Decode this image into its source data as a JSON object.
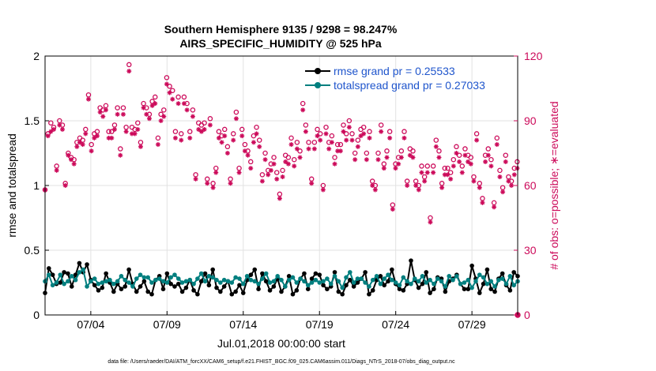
{
  "chart_data": {
    "type": "line",
    "title": "Southern Hemisphere 9135 / 9298 = 98.247%",
    "subtitle": "AIRS_SPECIFIC_HUMIDITY @ 525 hPa",
    "xlabel": "Jul.01,2018 00:00:00 start",
    "ylabel": "rmse and totalspread",
    "ylabel_right": "# of obs: o=possible; ∗=evaluated",
    "footer": "data file: /Users/raeder/DAI/ATM_forcXX/CAM6_setup/f.e21.FHIST_BGC.f09_025.CAM6assim.011/Diags_NTrS_2018-07/obs_diag_output.nc",
    "xlim": [
      1.0,
      32.0
    ],
    "ylim": [
      0,
      2
    ],
    "ylim_right": [
      0,
      120
    ],
    "x_ticks": [
      4,
      9,
      14,
      19,
      24,
      29
    ],
    "x_tick_labels": [
      "07/04",
      "07/09",
      "07/14",
      "07/19",
      "07/24",
      "07/29"
    ],
    "y_ticks": [
      0,
      0.5,
      1,
      1.5,
      2
    ],
    "y_tick_labels": [
      "0",
      "0.5",
      "1",
      "1.5",
      "2"
    ],
    "y_ticks_right": [
      0,
      30,
      60,
      90,
      120
    ],
    "y_tick_labels_right": [
      "0",
      "30",
      "60",
      "90",
      "120"
    ],
    "legend": [
      {
        "name": "rmse grand pr = 0.25533",
        "color": "#000000"
      },
      {
        "name": "totalspread grand pr = 0.27033",
        "color": "#007f7f"
      }
    ],
    "colors": {
      "rmse": "#000000",
      "spread": "#007f7f",
      "obs": "#cc0a5a",
      "legend_text": "#1f55cc"
    },
    "step": 0.25,
    "series": [
      {
        "name": "rmse",
        "values": [
          0.17,
          0.36,
          0.31,
          0.24,
          0.25,
          0.33,
          0.32,
          0.22,
          0.31,
          0.4,
          0.33,
          0.39,
          0.27,
          0.23,
          0.19,
          0.21,
          0.32,
          0.25,
          0.18,
          0.24,
          0.2,
          0.22,
          0.35,
          0.24,
          0.18,
          0.22,
          0.26,
          0.18,
          0.16,
          0.27,
          0.3,
          0.2,
          0.32,
          0.24,
          0.22,
          0.24,
          0.18,
          0.21,
          0.27,
          0.19,
          0.16,
          0.26,
          0.32,
          0.23,
          0.35,
          0.21,
          0.18,
          0.22,
          0.26,
          0.16,
          0.18,
          0.23,
          0.17,
          0.27,
          0.31,
          0.35,
          0.2,
          0.32,
          0.26,
          0.19,
          0.22,
          0.28,
          0.18,
          0.22,
          0.3,
          0.16,
          0.19,
          0.28,
          0.32,
          0.2,
          0.28,
          0.32,
          0.31,
          0.23,
          0.2,
          0.22,
          0.33,
          0.18,
          0.16,
          0.23,
          0.27,
          0.22,
          0.25,
          0.28,
          0.33,
          0.16,
          0.19,
          0.27,
          0.3,
          0.23,
          0.26,
          0.35,
          0.24,
          0.2,
          0.19,
          0.24,
          0.42,
          0.27,
          0.21,
          0.24,
          0.33,
          0.17,
          0.2,
          0.29,
          0.28,
          0.18,
          0.26,
          0.28,
          0.31,
          0.24,
          0.2,
          0.2,
          0.38,
          0.28,
          0.17,
          0.24,
          0.35,
          0.2,
          0.18,
          0.28,
          0.32,
          0.23,
          0.19,
          0.33,
          0.3,
          0.21,
          0.2
        ]
      },
      {
        "name": "totalspread",
        "values": [
          0.26,
          0.31,
          0.23,
          0.25,
          0.31,
          0.24,
          0.26,
          0.3,
          0.27,
          0.33,
          0.35,
          0.22,
          0.26,
          0.28,
          0.24,
          0.25,
          0.26,
          0.27,
          0.24,
          0.26,
          0.3,
          0.27,
          0.25,
          0.22,
          0.28,
          0.31,
          0.29,
          0.29,
          0.25,
          0.27,
          0.28,
          0.26,
          0.25,
          0.29,
          0.31,
          0.28,
          0.25,
          0.26,
          0.27,
          0.24,
          0.28,
          0.32,
          0.26,
          0.3,
          0.29,
          0.27,
          0.25,
          0.27,
          0.26,
          0.25,
          0.29,
          0.28,
          0.24,
          0.3,
          0.27,
          0.26,
          0.24,
          0.28,
          0.32,
          0.25,
          0.26,
          0.3,
          0.27,
          0.22,
          0.27,
          0.29,
          0.25,
          0.28,
          0.26,
          0.23,
          0.25,
          0.27,
          0.25,
          0.26,
          0.28,
          0.24,
          0.3,
          0.26,
          0.21,
          0.29,
          0.33,
          0.25,
          0.28,
          0.28,
          0.25,
          0.22,
          0.27,
          0.3,
          0.24,
          0.28,
          0.31,
          0.27,
          0.25,
          0.23,
          0.29,
          0.26,
          0.24,
          0.28,
          0.26,
          0.3,
          0.25,
          0.27,
          0.24,
          0.28,
          0.26,
          0.22,
          0.3,
          0.27,
          0.3,
          0.24,
          0.25,
          0.27,
          0.21,
          0.26,
          0.31,
          0.29,
          0.24,
          0.26,
          0.22,
          0.27,
          0.28,
          0.24,
          0.3,
          0.23,
          0.26,
          0.28,
          0.24
        ]
      },
      {
        "name": "possible",
        "values": [
          58,
          84,
          89,
          87,
          69,
          90,
          88,
          61,
          75,
          73,
          72,
          80,
          82,
          81,
          86,
          102,
          79,
          84,
          85,
          96,
          95,
          97,
          85,
          85,
          88,
          96,
          77,
          96,
          87,
          116,
          87,
          86,
          89,
          80,
          98,
          96,
          93,
          99,
          101,
          82,
          93,
          95,
          110,
          106,
          104,
          85,
          101,
          84,
          101,
          98,
          85,
          95,
          65,
          89,
          88,
          89,
          63,
          91,
          61,
          68,
          85,
          83,
          86,
          78,
          63,
          84,
          94,
          68,
          86,
          79,
          76,
          71,
          83,
          87,
          81,
          65,
          75,
          67,
          70,
          73,
          66,
          56,
          67,
          74,
          73,
          82,
          72,
          80,
          76,
          98,
          88,
          80,
          63,
          80,
          86,
          84,
          60,
          87,
          80,
          83,
          73,
          79,
          79,
          88,
          84,
          90,
          84,
          75,
          81,
          86,
          87,
          75,
          85,
          62,
          60,
          75,
          88,
          70,
          76,
          85,
          51,
          70,
          73,
          76,
          85,
          62,
          77,
          76,
          62,
          60,
          69,
          64,
          69,
          45,
          69,
          81,
          76,
          61,
          68,
          68,
          66,
          72,
          78,
          74,
          69,
          77,
          74,
          73,
          64,
          84,
          61,
          54,
          74,
          77,
          72,
          52,
          82,
          67,
          59,
          74,
          64,
          62,
          68,
          71
        ]
      },
      {
        "name": "evaluated",
        "values": [
          58,
          83,
          85,
          86,
          67,
          88,
          86,
          60,
          74,
          72,
          70,
          78,
          80,
          79,
          84,
          100,
          76,
          82,
          83,
          94,
          92,
          95,
          82,
          82,
          86,
          93,
          74,
          93,
          85,
          113,
          84,
          84,
          86,
          78,
          96,
          93,
          91,
          97,
          98,
          79,
          90,
          92,
          107,
          103,
          100,
          82,
          98,
          81,
          98,
          95,
          82,
          92,
          63,
          86,
          85,
          86,
          61,
          88,
          59,
          66,
          82,
          80,
          83,
          75,
          61,
          81,
          91,
          66,
          83,
          76,
          74,
          68,
          80,
          84,
          78,
          62,
          72,
          65,
          67,
          70,
          63,
          54,
          64,
          71,
          70,
          79,
          69,
          77,
          73,
          95,
          85,
          77,
          61,
          77,
          83,
          81,
          58,
          84,
          77,
          80,
          70,
          76,
          76,
          85,
          81,
          87,
          81,
          72,
          78,
          83,
          84,
          72,
          82,
          60,
          58,
          72,
          85,
          68,
          73,
          82,
          49,
          68,
          70,
          73,
          82,
          60,
          74,
          73,
          60,
          58,
          66,
          62,
          66,
          43,
          66,
          78,
          73,
          59,
          65,
          65,
          63,
          69,
          75,
          71,
          66,
          74,
          71,
          70,
          62,
          81,
          59,
          52,
          71,
          74,
          69,
          50,
          79,
          64,
          57,
          71,
          62,
          60,
          65,
          68
        ]
      }
    ],
    "obs_x_start": 1.0,
    "obs_step": 0.19,
    "final_obs_point": {
      "x": 32.0,
      "possible": 0,
      "evaluated": 0
    }
  }
}
